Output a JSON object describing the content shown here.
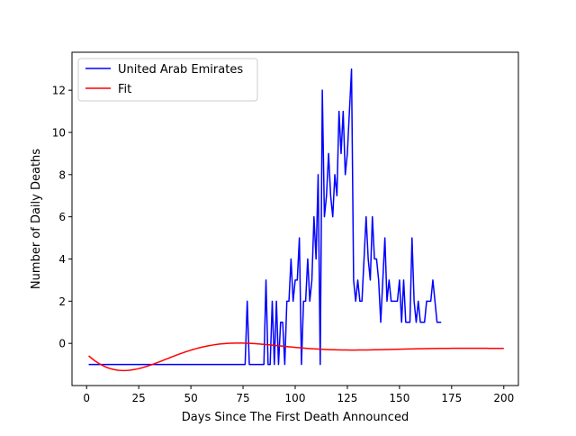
{
  "chart_data": {
    "type": "line",
    "xlabel": "Days Since The First Death Announced",
    "ylabel": "Number of Daily Deaths",
    "xlim": [
      -7,
      207
    ],
    "ylim": [
      -2,
      13.8
    ],
    "xticks": [
      0,
      25,
      50,
      75,
      100,
      125,
      150,
      175,
      200
    ],
    "yticks": [
      0,
      2,
      4,
      6,
      8,
      10,
      12
    ],
    "grid": false,
    "legend_position": "top-left",
    "series": [
      {
        "name": "United Arab Emirates",
        "color": "#0000ff",
        "x": [
          1,
          2,
          3,
          4,
          5,
          6,
          7,
          8,
          9,
          10,
          11,
          12,
          13,
          14,
          15,
          16,
          17,
          18,
          19,
          20,
          21,
          22,
          23,
          24,
          25,
          26,
          27,
          28,
          29,
          30,
          31,
          32,
          33,
          34,
          35,
          36,
          37,
          38,
          39,
          40,
          41,
          42,
          43,
          44,
          45,
          46,
          47,
          48,
          49,
          50,
          51,
          52,
          53,
          54,
          55,
          56,
          57,
          58,
          59,
          60,
          61,
          62,
          63,
          64,
          65,
          66,
          67,
          68,
          69,
          70,
          71,
          72,
          73,
          74,
          75,
          76,
          77,
          78,
          79,
          80,
          81,
          82,
          83,
          84,
          85,
          86,
          87,
          88,
          89,
          90,
          91,
          92,
          93,
          94,
          95,
          96,
          97,
          98,
          99,
          100,
          101,
          102,
          103,
          104,
          105,
          106,
          107,
          108,
          109,
          110,
          111,
          112,
          113,
          114,
          115,
          116,
          117,
          118,
          119,
          120,
          121,
          122,
          123,
          124,
          125,
          126,
          127,
          128,
          129,
          130,
          131,
          132,
          133,
          134,
          135,
          136,
          137,
          138,
          139,
          140,
          141,
          142,
          143,
          144,
          145,
          146,
          147,
          148,
          149,
          150,
          151,
          152,
          153,
          154,
          155,
          156,
          157,
          158,
          159,
          160,
          161,
          162,
          163,
          164,
          165,
          166,
          167,
          168,
          169,
          170
        ],
        "y": [
          -1,
          -1,
          -1,
          -1,
          -1,
          -1,
          -1,
          -1,
          -1,
          -1,
          -1,
          -1,
          -1,
          -1,
          -1,
          -1,
          -1,
          -1,
          -1,
          -1,
          -1,
          -1,
          -1,
          -1,
          -1,
          -1,
          -1,
          -1,
          -1,
          -1,
          -1,
          -1,
          -1,
          -1,
          -1,
          -1,
          -1,
          -1,
          -1,
          -1,
          -1,
          -1,
          -1,
          -1,
          -1,
          -1,
          -1,
          -1,
          -1,
          -1,
          -1,
          -1,
          -1,
          -1,
          -1,
          -1,
          -1,
          -1,
          -1,
          -1,
          -1,
          -1,
          -1,
          -1,
          -1,
          -1,
          -1,
          -1,
          -1,
          -1,
          -1,
          -1,
          -1,
          -1,
          -1,
          -1,
          2,
          -1,
          -1,
          -1,
          -1,
          -1,
          -1,
          -1,
          -1,
          3,
          -1,
          -1,
          2,
          -1,
          2,
          -1,
          1,
          1,
          -1,
          2,
          2,
          4,
          2,
          3,
          3,
          5,
          -1,
          2,
          2,
          4,
          2,
          3,
          6,
          4,
          8,
          -1,
          12,
          6,
          7,
          9,
          7,
          6,
          8,
          7,
          11,
          9,
          11,
          8,
          9,
          11,
          13,
          3,
          2,
          3,
          2,
          2,
          4,
          6,
          4,
          3,
          6,
          4,
          4,
          3,
          1,
          3,
          5,
          2,
          3,
          2,
          2,
          2,
          2,
          3,
          1,
          3,
          1,
          1,
          1,
          5,
          2,
          1,
          2,
          1,
          1,
          1,
          2,
          2,
          2,
          3,
          2,
          1,
          1,
          1
        ]
      },
      {
        "name": "Fit",
        "color": "#ff0000",
        "function": "-0.25 + exp(-x/40) * (-0.25*cos(x/17.5) - 1.75*sin(x/17.5))",
        "x_range": [
          1,
          200
        ]
      }
    ]
  }
}
